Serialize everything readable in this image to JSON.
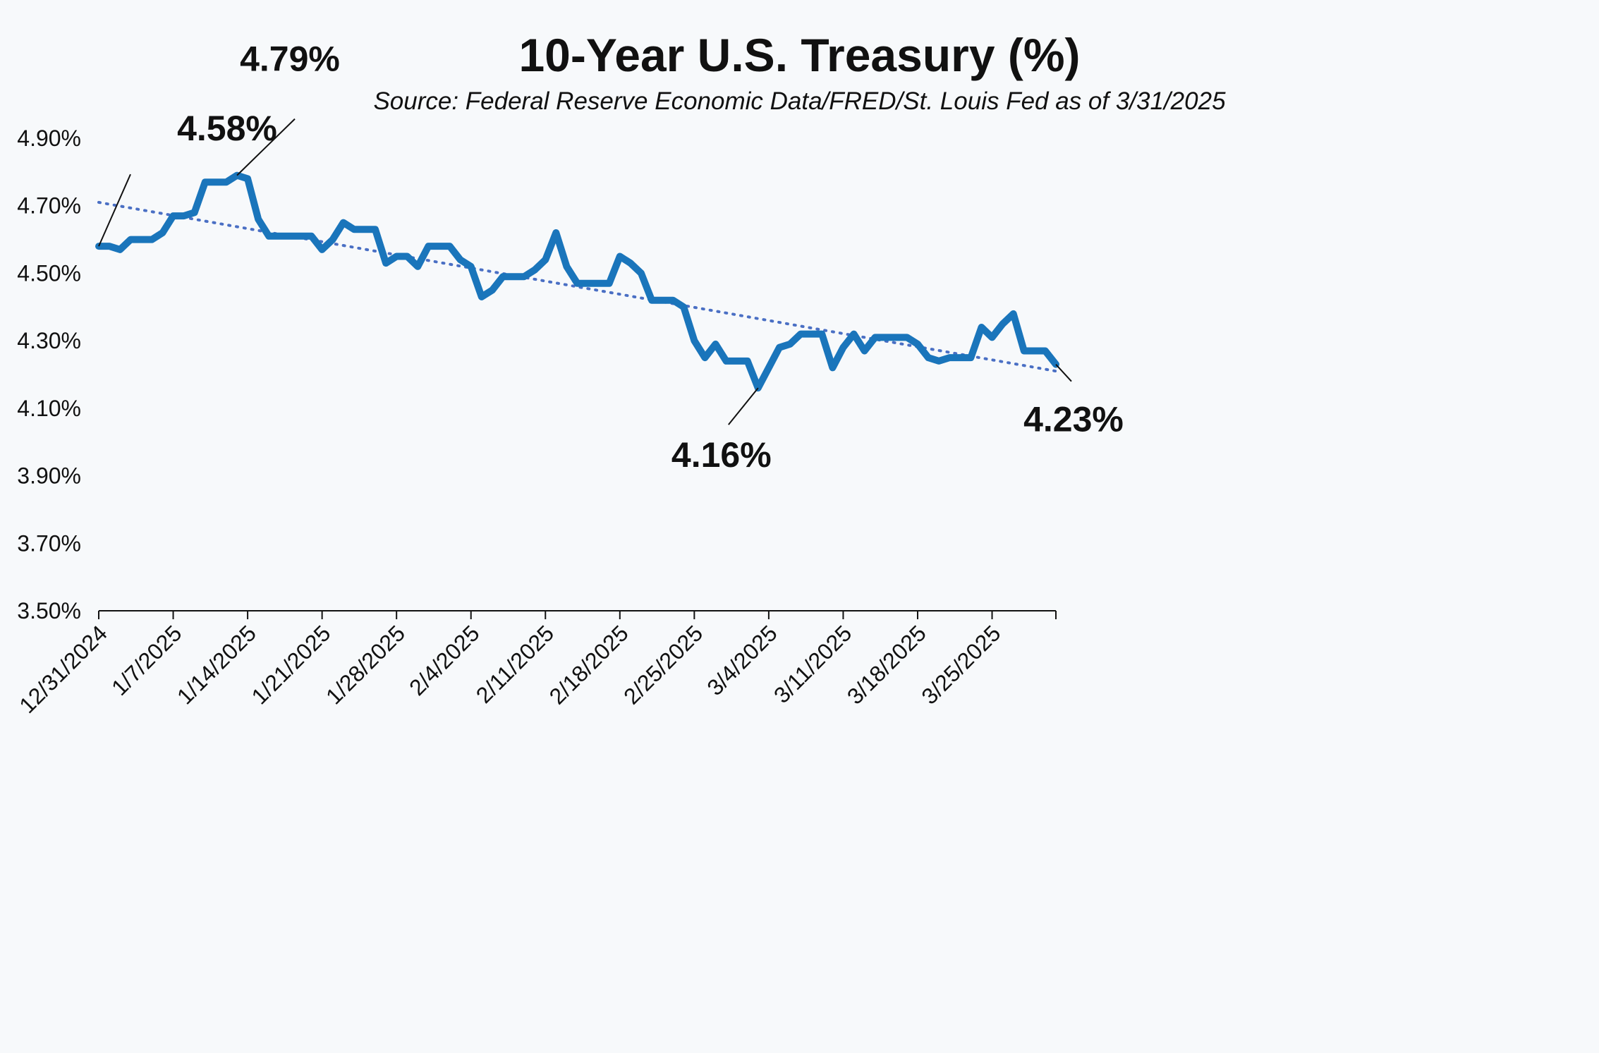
{
  "chart_data": {
    "type": "line",
    "title": "10-Year U.S. Treasury (%)",
    "subtitle": "Source: Federal Reserve Economic Data/FRED/St. Louis Fed as of 3/31/2025",
    "xlabel": "",
    "ylabel": "",
    "ylim": [
      3.5,
      4.9
    ],
    "y_ticks": [
      "3.50%",
      "3.70%",
      "3.90%",
      "4.10%",
      "4.30%",
      "4.50%",
      "4.70%",
      "4.90%"
    ],
    "x_ticks": [
      "12/31/2024",
      "1/7/2025",
      "1/14/2025",
      "1/21/2025",
      "1/28/2025",
      "2/4/2025",
      "2/11/2025",
      "2/18/2025",
      "2/25/2025",
      "3/4/2025",
      "3/11/2025",
      "3/18/2025",
      "3/25/2025"
    ],
    "x_range": [
      "12/31/2024",
      "3/31/2025"
    ],
    "grid": false,
    "legend": "none",
    "colors": {
      "series": "#1a75bb",
      "trend": "#4a6fc4",
      "text": "#111111"
    },
    "series": [
      {
        "style": "solid",
        "points": [
          [
            "12/31/2024",
            4.58
          ],
          [
            "1/1/2025",
            4.58
          ],
          [
            "1/2/2025",
            4.57
          ],
          [
            "1/3/2025",
            4.6
          ],
          [
            "1/4/2025",
            4.6
          ],
          [
            "1/5/2025",
            4.6
          ],
          [
            "1/6/2025",
            4.62
          ],
          [
            "1/7/2025",
            4.67
          ],
          [
            "1/8/2025",
            4.67
          ],
          [
            "1/9/2025",
            4.68
          ],
          [
            "1/10/2025",
            4.77
          ],
          [
            "1/11/2025",
            4.77
          ],
          [
            "1/12/2025",
            4.77
          ],
          [
            "1/13/2025",
            4.79
          ],
          [
            "1/14/2025",
            4.78
          ],
          [
            "1/15/2025",
            4.66
          ],
          [
            "1/16/2025",
            4.61
          ],
          [
            "1/17/2025",
            4.61
          ],
          [
            "1/18/2025",
            4.61
          ],
          [
            "1/19/2025",
            4.61
          ],
          [
            "1/20/2025",
            4.61
          ],
          [
            "1/21/2025",
            4.57
          ],
          [
            "1/22/2025",
            4.6
          ],
          [
            "1/23/2025",
            4.65
          ],
          [
            "1/24/2025",
            4.63
          ],
          [
            "1/25/2025",
            4.63
          ],
          [
            "1/26/2025",
            4.63
          ],
          [
            "1/27/2025",
            4.53
          ],
          [
            "1/28/2025",
            4.55
          ],
          [
            "1/29/2025",
            4.55
          ],
          [
            "1/30/2025",
            4.52
          ],
          [
            "1/31/2025",
            4.58
          ],
          [
            "2/1/2025",
            4.58
          ],
          [
            "2/2/2025",
            4.58
          ],
          [
            "2/3/2025",
            4.54
          ],
          [
            "2/4/2025",
            4.52
          ],
          [
            "2/5/2025",
            4.43
          ],
          [
            "2/6/2025",
            4.45
          ],
          [
            "2/7/2025",
            4.49
          ],
          [
            "2/8/2025",
            4.49
          ],
          [
            "2/9/2025",
            4.49
          ],
          [
            "2/10/2025",
            4.51
          ],
          [
            "2/11/2025",
            4.54
          ],
          [
            "2/12/2025",
            4.62
          ],
          [
            "2/13/2025",
            4.52
          ],
          [
            "2/14/2025",
            4.47
          ],
          [
            "2/15/2025",
            4.47
          ],
          [
            "2/16/2025",
            4.47
          ],
          [
            "2/17/2025",
            4.47
          ],
          [
            "2/18/2025",
            4.55
          ],
          [
            "2/19/2025",
            4.53
          ],
          [
            "2/20/2025",
            4.5
          ],
          [
            "2/21/2025",
            4.42
          ],
          [
            "2/22/2025",
            4.42
          ],
          [
            "2/23/2025",
            4.42
          ],
          [
            "2/24/2025",
            4.4
          ],
          [
            "2/25/2025",
            4.3
          ],
          [
            "2/26/2025",
            4.25
          ],
          [
            "2/27/2025",
            4.29
          ],
          [
            "2/28/2025",
            4.24
          ],
          [
            "3/1/2025",
            4.24
          ],
          [
            "3/2/2025",
            4.24
          ],
          [
            "3/3/2025",
            4.16
          ],
          [
            "3/4/2025",
            4.22
          ],
          [
            "3/5/2025",
            4.28
          ],
          [
            "3/6/2025",
            4.29
          ],
          [
            "3/7/2025",
            4.32
          ],
          [
            "3/8/2025",
            4.32
          ],
          [
            "3/9/2025",
            4.32
          ],
          [
            "3/10/2025",
            4.22
          ],
          [
            "3/11/2025",
            4.28
          ],
          [
            "3/12/2025",
            4.32
          ],
          [
            "3/13/2025",
            4.27
          ],
          [
            "3/14/2025",
            4.31
          ],
          [
            "3/15/2025",
            4.31
          ],
          [
            "3/16/2025",
            4.31
          ],
          [
            "3/17/2025",
            4.31
          ],
          [
            "3/18/2025",
            4.29
          ],
          [
            "3/19/2025",
            4.25
          ],
          [
            "3/20/2025",
            4.24
          ],
          [
            "3/21/2025",
            4.25
          ],
          [
            "3/22/2025",
            4.25
          ],
          [
            "3/23/2025",
            4.25
          ],
          [
            "3/24/2025",
            4.34
          ],
          [
            "3/25/2025",
            4.31
          ],
          [
            "3/26/2025",
            4.35
          ],
          [
            "3/27/2025",
            4.38
          ],
          [
            "3/28/2025",
            4.27
          ],
          [
            "3/29/2025",
            4.27
          ],
          [
            "3/30/2025",
            4.27
          ],
          [
            "3/31/2025",
            4.23
          ]
        ]
      },
      {
        "style": "dotted-trendline",
        "points": [
          [
            "12/31/2024",
            4.71
          ],
          [
            "3/31/2025",
            4.21
          ]
        ]
      }
    ],
    "annotations": [
      {
        "text": "4.58%",
        "x": "12/31/2024",
        "y": 4.58
      },
      {
        "text": "4.79%",
        "x": "1/13/2025",
        "y": 4.79
      },
      {
        "text": "4.16%",
        "x": "3/3/2025",
        "y": 4.16
      },
      {
        "text": "4.23%",
        "x": "3/31/2025",
        "y": 4.23
      }
    ]
  }
}
